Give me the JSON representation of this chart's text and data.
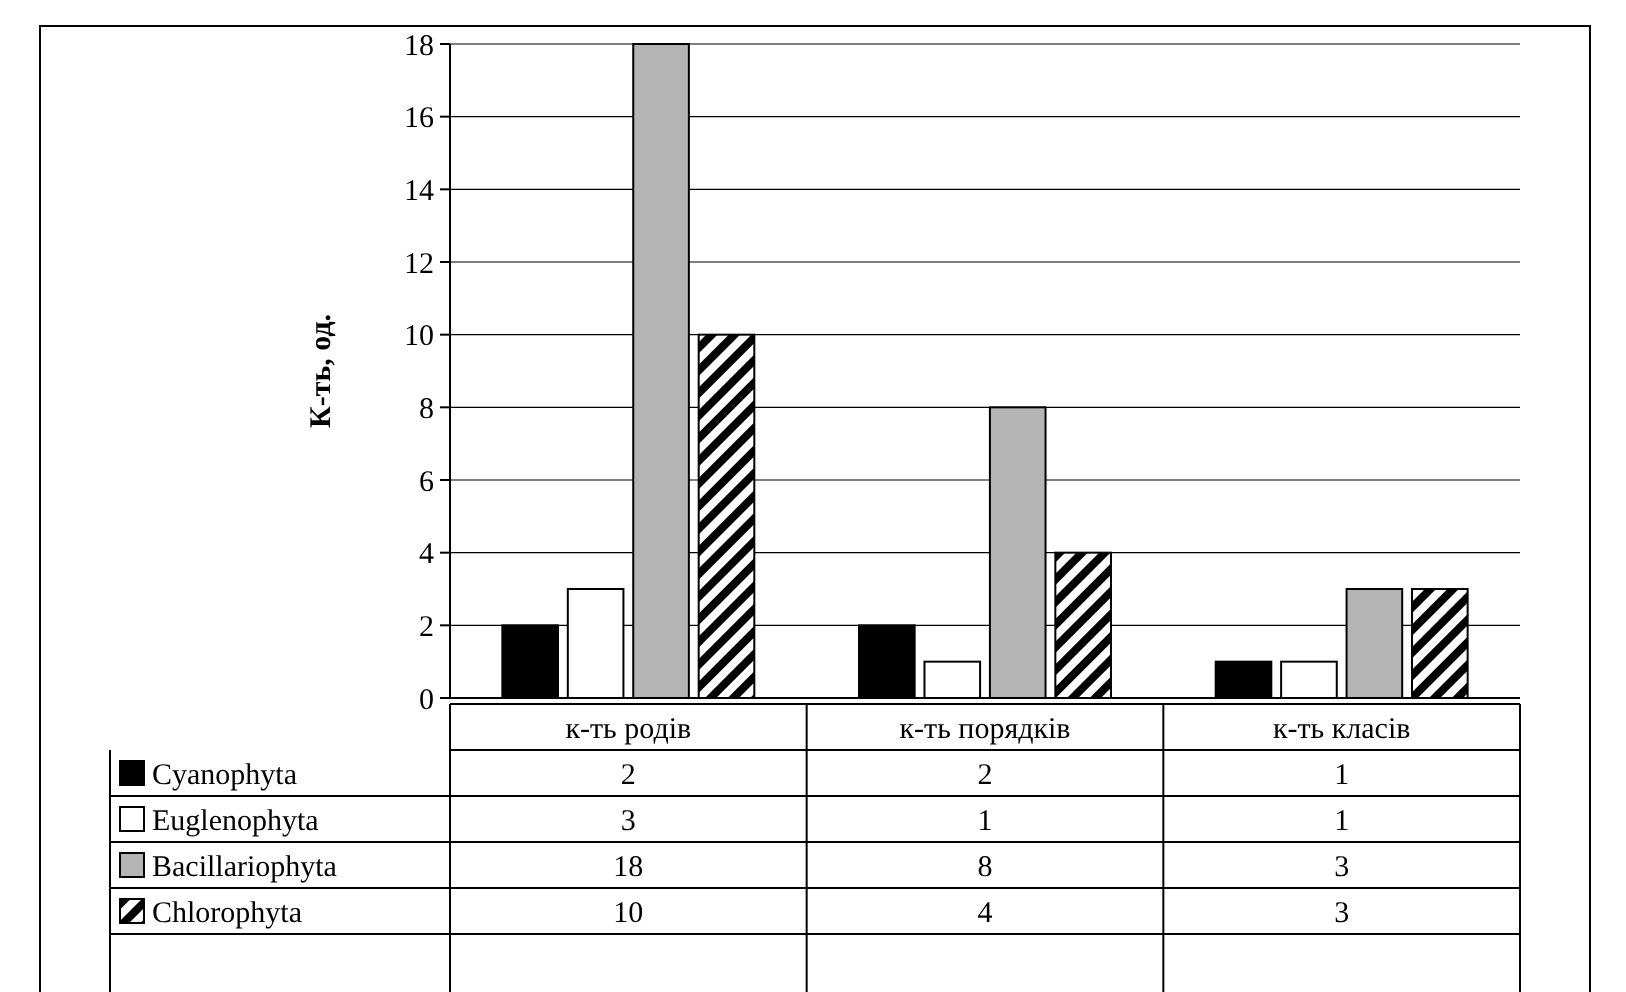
{
  "chart_data": {
    "type": "bar",
    "ylabel": "К-ть, од.",
    "categories": [
      "к-ть родів",
      "к-ть порядків",
      "к-ть класів"
    ],
    "series": [
      {
        "name": "Cyanophyta",
        "color": "#000000",
        "values": [
          2,
          2,
          1
        ]
      },
      {
        "name": "Euglenophyta",
        "color": "#ffffff",
        "values": [
          3,
          1,
          1
        ]
      },
      {
        "name": "Bacillariophyta",
        "color": "#b4b4b4",
        "values": [
          18,
          8,
          3
        ]
      },
      {
        "name": "Chlorophyta",
        "color": "#000000",
        "values": [
          10,
          4,
          3
        ]
      }
    ],
    "ylim": [
      0,
      18
    ],
    "yticks": [
      0,
      2,
      4,
      6,
      8,
      10,
      12,
      14,
      16,
      18
    ],
    "grid": "y",
    "legend": "bottom",
    "data_labels": true
  }
}
